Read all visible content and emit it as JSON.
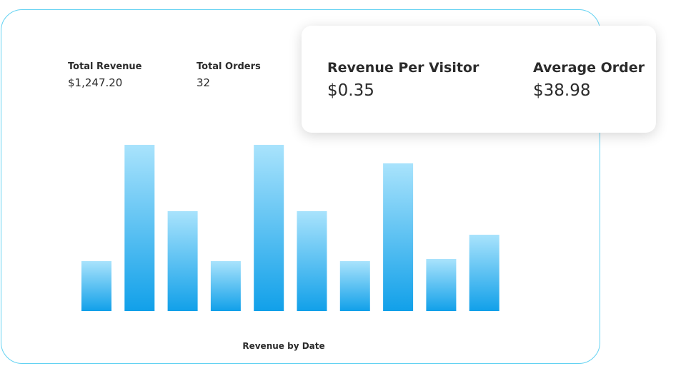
{
  "stats": [
    {
      "label": "Total Revenue",
      "value": "$1,247.20"
    },
    {
      "label": "Total Orders",
      "value": "32"
    }
  ],
  "highlight": [
    {
      "label": "Revenue Per Visitor",
      "value": "$0.35"
    },
    {
      "label": "Average Order",
      "value": "$38.98"
    }
  ],
  "chart_data": {
    "type": "bar",
    "title": "Revenue by Date",
    "categories": [
      null,
      null,
      null,
      null,
      null,
      null,
      null,
      null,
      null,
      null
    ],
    "values": [
      70,
      233,
      140,
      70,
      233,
      140,
      70,
      207,
      73,
      107
    ],
    "gradient": {
      "top": "#a9e3fc",
      "bottom": "#11a0e9"
    }
  }
}
